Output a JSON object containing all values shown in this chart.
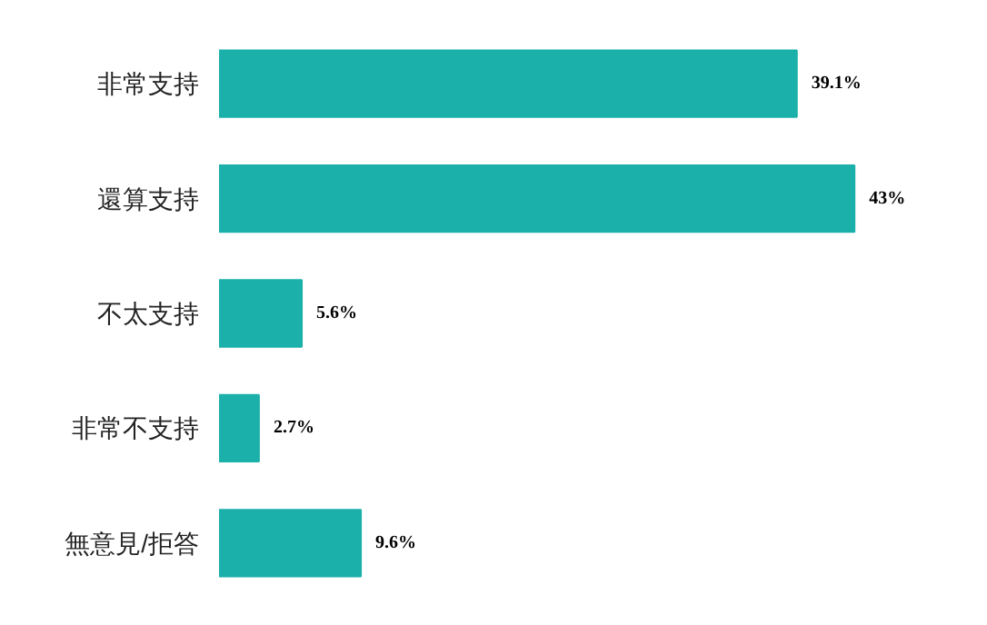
{
  "chart_data": {
    "type": "bar",
    "orientation": "horizontal",
    "categories": [
      "非常支持",
      "還算支持",
      "不太支持",
      "非常不支持",
      "無意見/拒答"
    ],
    "values": [
      39.1,
      43,
      5.6,
      2.7,
      9.6
    ],
    "color": "#1bb0aa",
    "data_labels": true,
    "value_labels": [
      "39.1%",
      "43%",
      "5.6%",
      "2.7%",
      "9.6%"
    ]
  }
}
